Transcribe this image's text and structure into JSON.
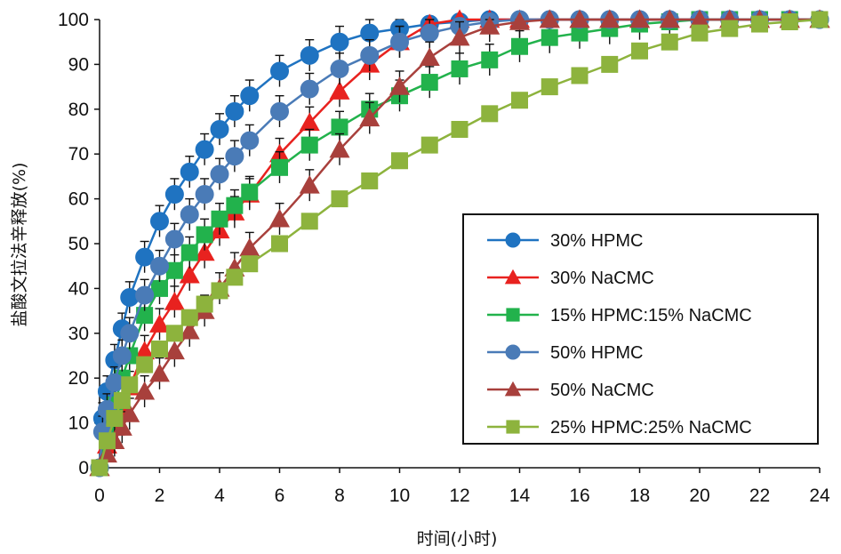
{
  "chart_data": {
    "type": "line",
    "xlabel": "时间(小时)",
    "ylabel": "盐酸文拉法辛释放(%)",
    "xlim": [
      0,
      24
    ],
    "ylim": [
      0,
      100
    ],
    "xticks": [
      "0",
      "2",
      "4",
      "6",
      "8",
      "10",
      "12",
      "14",
      "16",
      "18",
      "20",
      "22",
      "24"
    ],
    "yticks": [
      "0",
      "10",
      "20",
      "30",
      "40",
      "50",
      "60",
      "70",
      "80",
      "90",
      "100"
    ],
    "grid": false,
    "legend_position": "right",
    "series": [
      {
        "name": "30% HPMC",
        "color": "#1f73c1",
        "marker": "circle",
        "x": [
          0,
          0.1,
          0.25,
          0.5,
          0.75,
          1,
          1.5,
          2,
          2.5,
          3,
          3.5,
          4,
          4.5,
          5,
          6,
          7,
          8,
          9,
          10,
          11,
          12,
          13,
          14,
          15,
          16,
          17,
          18,
          19,
          20,
          21,
          22,
          23,
          24
        ],
        "y": [
          0,
          11,
          17,
          24,
          31,
          38,
          47,
          55,
          61,
          66,
          71,
          75.5,
          79.5,
          83,
          88.5,
          92,
          95,
          97,
          98,
          99,
          99.5,
          100,
          100,
          100,
          100,
          100,
          100,
          100,
          100,
          100,
          100,
          100,
          100
        ]
      },
      {
        "name": "30% NaCMC",
        "color": "#e8221f",
        "marker": "triangle",
        "x": [
          0,
          0.25,
          0.5,
          0.75,
          1,
          1.5,
          2,
          2.5,
          3,
          3.5,
          4,
          4.5,
          5,
          6,
          7,
          8,
          9,
          10,
          11,
          12,
          13,
          14,
          15,
          16,
          17,
          18,
          19,
          20,
          21,
          22,
          23,
          24
        ],
        "y": [
          0,
          5,
          9,
          13,
          18,
          26,
          32,
          37,
          43,
          48,
          53,
          57,
          61,
          70,
          77,
          84,
          90,
          95,
          99,
          100,
          100,
          100,
          100,
          100,
          100,
          100,
          100,
          100,
          100,
          100,
          100,
          100
        ]
      },
      {
        "name": "15% HPMC:15% NaCMC",
        "color": "#22b24c",
        "marker": "square",
        "x": [
          0,
          0.25,
          0.5,
          0.75,
          1,
          1.5,
          2,
          2.5,
          3,
          3.5,
          4,
          4.5,
          5,
          6,
          7,
          8,
          9,
          10,
          11,
          12,
          13,
          14,
          15,
          16,
          17,
          18,
          19,
          20,
          21,
          22,
          23,
          24
        ],
        "y": [
          0,
          8,
          14,
          20,
          25,
          34,
          40,
          44,
          48,
          52,
          55.5,
          58.5,
          61.5,
          67,
          72,
          76,
          80,
          83,
          86,
          89,
          91,
          94,
          96,
          97,
          98,
          99,
          99.5,
          100,
          100,
          100,
          100,
          100
        ]
      },
      {
        "name": "50% HPMC",
        "color": "#4a7bb7",
        "marker": "circle",
        "x": [
          0,
          0.1,
          0.25,
          0.5,
          0.75,
          1,
          1.5,
          2,
          2.5,
          3,
          3.5,
          4,
          4.5,
          5,
          6,
          7,
          8,
          9,
          10,
          11,
          12,
          13,
          14,
          15,
          16,
          17,
          18,
          19,
          20,
          21,
          22,
          23,
          24
        ],
        "y": [
          0,
          8,
          13,
          19,
          25,
          30,
          38.5,
          45,
          51,
          56.5,
          61,
          65.5,
          69.5,
          73,
          79.5,
          84.5,
          89,
          92,
          95,
          97,
          98.5,
          99.5,
          100,
          100,
          100,
          100,
          100,
          100,
          100,
          100,
          100,
          100,
          100
        ]
      },
      {
        "name": "50% NaCMC",
        "color": "#a8403c",
        "marker": "triangle",
        "x": [
          0,
          0.25,
          0.5,
          0.75,
          1,
          1.5,
          2,
          2.5,
          3,
          3.5,
          4,
          4.5,
          5,
          6,
          7,
          8,
          9,
          10,
          11,
          12,
          13,
          14,
          15,
          16,
          17,
          18,
          19,
          20,
          21,
          22,
          23,
          24
        ],
        "y": [
          0,
          3,
          6,
          9,
          12,
          17,
          21,
          26,
          30.5,
          35,
          40,
          44.5,
          49,
          55.5,
          63,
          71,
          78,
          85,
          91.5,
          96,
          98.5,
          99.5,
          100,
          100,
          100,
          100,
          100,
          100,
          100,
          100,
          100,
          100
        ]
      },
      {
        "name": "25% HPMC:25% NaCMC",
        "color": "#8db33d",
        "marker": "square",
        "x": [
          0,
          0.25,
          0.5,
          0.75,
          1,
          1.5,
          2,
          2.5,
          3,
          3.5,
          4,
          4.5,
          5,
          6,
          7,
          8,
          9,
          10,
          11,
          12,
          13,
          14,
          15,
          16,
          17,
          18,
          19,
          20,
          21,
          22,
          23,
          24
        ],
        "y": [
          0,
          6,
          11,
          15,
          18.5,
          23,
          26.5,
          30,
          33.5,
          36.5,
          39.5,
          42.5,
          45.5,
          50,
          55,
          60,
          64,
          68.5,
          72,
          75.5,
          79,
          82,
          85,
          87.5,
          90,
          93,
          95,
          97,
          98,
          99,
          99.5,
          100
        ]
      }
    ]
  }
}
